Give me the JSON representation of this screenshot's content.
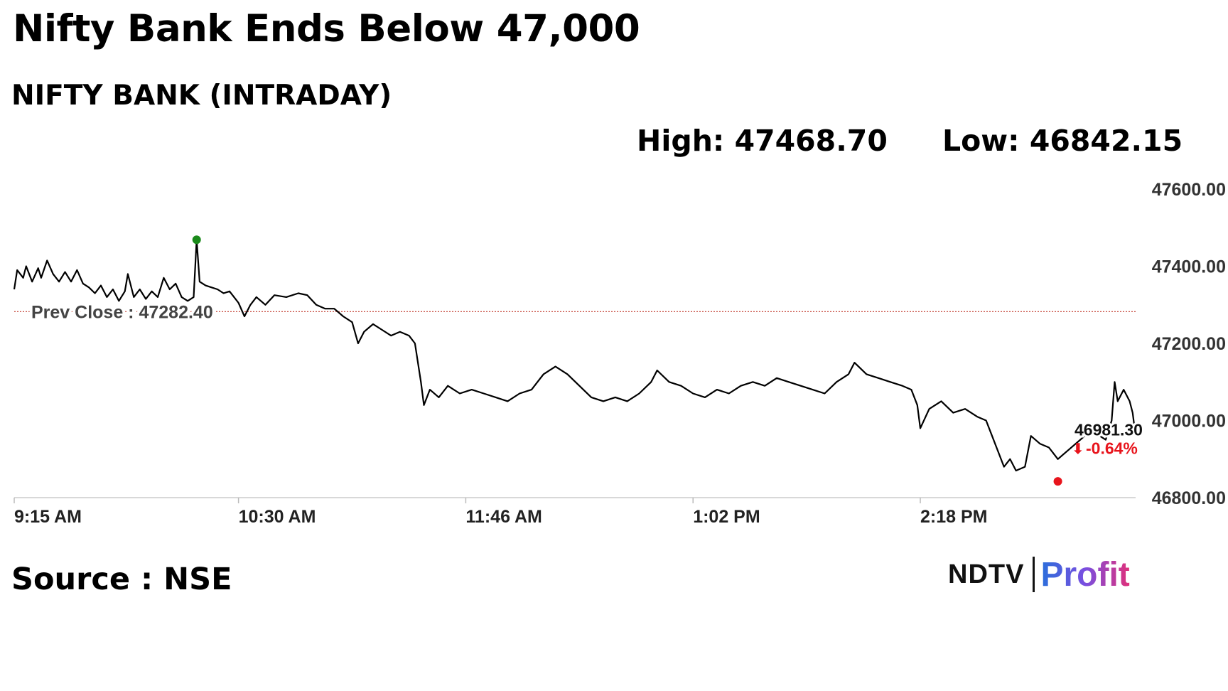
{
  "header": {
    "headline": "Nifty Bank Ends Below 47,000",
    "subtitle": "NIFTY BANK (INTRADAY)",
    "high_text": "High: 47468.70",
    "low_text": "Low: 46842.15"
  },
  "footer": {
    "source": "Source : NSE",
    "logo_ndtv": "NDTV",
    "logo_profit": "Profit"
  },
  "colors": {
    "line": "#000000",
    "prev_close_line": "#c0392b",
    "high_marker": "#1a8a1a",
    "low_marker": "#e8141c",
    "last_marker": "#1a1aa8",
    "change_negative": "#e8141c"
  },
  "chart_data": {
    "type": "line",
    "title": "NIFTY BANK (INTRADAY)",
    "xlabel": "",
    "ylabel": "",
    "ylim": [
      46800,
      47600
    ],
    "yticks": [
      47600,
      47400,
      47200,
      47000,
      46800
    ],
    "ytick_labels": [
      "47600.00",
      "47400.00",
      "47200.00",
      "47000.00",
      "46800.00"
    ],
    "xlim": [
      "09:15",
      "15:30"
    ],
    "xticks": [
      "09:15",
      "10:30",
      "11:46",
      "13:02",
      "14:18"
    ],
    "xtick_labels": [
      "9:15 AM",
      "10:30 AM",
      "11:46 AM",
      "1:02 PM",
      "2:18 PM"
    ],
    "grid": false,
    "prev_close": 47282.4,
    "prev_close_label": "Prev Close : 47282.40",
    "high": {
      "x": "10:16",
      "y": 47468.7
    },
    "low": {
      "x": "15:04",
      "y": 46842.15
    },
    "last": {
      "x": "15:30",
      "y": 46981.3
    },
    "last_label": "46981.30",
    "change_label": "-0.64%",
    "change_arrow": "⬇",
    "series": [
      {
        "values": [
          [
            "09:15",
            47340
          ],
          [
            "09:16",
            47390
          ],
          [
            "09:18",
            47370
          ],
          [
            "09:19",
            47400
          ],
          [
            "09:21",
            47360
          ],
          [
            "09:23",
            47395
          ],
          [
            "09:24",
            47370
          ],
          [
            "09:26",
            47415
          ],
          [
            "09:28",
            47380
          ],
          [
            "09:30",
            47360
          ],
          [
            "09:32",
            47385
          ],
          [
            "09:34",
            47360
          ],
          [
            "09:36",
            47390
          ],
          [
            "09:38",
            47355
          ],
          [
            "09:40",
            47345
          ],
          [
            "09:42",
            47330
          ],
          [
            "09:44",
            47350
          ],
          [
            "09:46",
            47320
          ],
          [
            "09:48",
            47340
          ],
          [
            "09:50",
            47310
          ],
          [
            "09:52",
            47335
          ],
          [
            "09:53",
            47380
          ],
          [
            "09:55",
            47320
          ],
          [
            "09:57",
            47340
          ],
          [
            "09:59",
            47315
          ],
          [
            "10:01",
            47335
          ],
          [
            "10:03",
            47320
          ],
          [
            "10:05",
            47370
          ],
          [
            "10:07",
            47340
          ],
          [
            "10:09",
            47355
          ],
          [
            "10:11",
            47320
          ],
          [
            "10:13",
            47310
          ],
          [
            "10:15",
            47320
          ],
          [
            "10:16",
            47468.7
          ],
          [
            "10:17",
            47360
          ],
          [
            "10:19",
            47350
          ],
          [
            "10:21",
            47345
          ],
          [
            "10:23",
            47340
          ],
          [
            "10:25",
            47330
          ],
          [
            "10:27",
            47335
          ],
          [
            "10:29",
            47315
          ],
          [
            "10:30",
            47305
          ],
          [
            "10:32",
            47270
          ],
          [
            "10:34",
            47300
          ],
          [
            "10:36",
            47320
          ],
          [
            "10:39",
            47300
          ],
          [
            "10:42",
            47325
          ],
          [
            "10:46",
            47320
          ],
          [
            "10:50",
            47330
          ],
          [
            "10:53",
            47325
          ],
          [
            "10:56",
            47300
          ],
          [
            "10:59",
            47290
          ],
          [
            "11:02",
            47290
          ],
          [
            "11:05",
            47270
          ],
          [
            "11:08",
            47255
          ],
          [
            "11:10",
            47200
          ],
          [
            "11:12",
            47230
          ],
          [
            "11:15",
            47250
          ],
          [
            "11:18",
            47235
          ],
          [
            "11:21",
            47220
          ],
          [
            "11:24",
            47230
          ],
          [
            "11:27",
            47220
          ],
          [
            "11:29",
            47200
          ],
          [
            "11:31",
            47100
          ],
          [
            "11:32",
            47040
          ],
          [
            "11:34",
            47080
          ],
          [
            "11:37",
            47060
          ],
          [
            "11:40",
            47090
          ],
          [
            "11:44",
            47070
          ],
          [
            "11:48",
            47080
          ],
          [
            "11:52",
            47070
          ],
          [
            "11:56",
            47060
          ],
          [
            "12:00",
            47050
          ],
          [
            "12:04",
            47070
          ],
          [
            "12:08",
            47080
          ],
          [
            "12:12",
            47120
          ],
          [
            "12:16",
            47140
          ],
          [
            "12:20",
            47120
          ],
          [
            "12:24",
            47090
          ],
          [
            "12:28",
            47060
          ],
          [
            "12:32",
            47050
          ],
          [
            "12:36",
            47060
          ],
          [
            "12:40",
            47050
          ],
          [
            "12:44",
            47070
          ],
          [
            "12:48",
            47100
          ],
          [
            "12:50",
            47130
          ],
          [
            "12:54",
            47100
          ],
          [
            "12:58",
            47090
          ],
          [
            "13:02",
            47070
          ],
          [
            "13:06",
            47060
          ],
          [
            "13:10",
            47080
          ],
          [
            "13:14",
            47070
          ],
          [
            "13:18",
            47090
          ],
          [
            "13:22",
            47100
          ],
          [
            "13:26",
            47090
          ],
          [
            "13:30",
            47110
          ],
          [
            "13:34",
            47100
          ],
          [
            "13:38",
            47090
          ],
          [
            "13:42",
            47080
          ],
          [
            "13:46",
            47070
          ],
          [
            "13:50",
            47100
          ],
          [
            "13:54",
            47120
          ],
          [
            "13:56",
            47150
          ],
          [
            "14:00",
            47120
          ],
          [
            "14:04",
            47110
          ],
          [
            "14:08",
            47100
          ],
          [
            "14:12",
            47090
          ],
          [
            "14:15",
            47080
          ],
          [
            "14:17",
            47040
          ],
          [
            "14:18",
            46980
          ],
          [
            "14:21",
            47030
          ],
          [
            "14:25",
            47050
          ],
          [
            "14:29",
            47020
          ],
          [
            "14:33",
            47030
          ],
          [
            "14:37",
            47010
          ],
          [
            "14:40",
            47000
          ],
          [
            "14:42",
            46960
          ],
          [
            "14:44",
            46920
          ],
          [
            "14:46",
            46880
          ],
          [
            "14:48",
            46900
          ],
          [
            "14:50",
            46870
          ],
          [
            "14:53",
            46880
          ],
          [
            "14:55",
            46960
          ],
          [
            "14:58",
            46940
          ],
          [
            "15:01",
            46930
          ],
          [
            "15:04",
            46900
          ],
          [
            "15:07",
            46920
          ],
          [
            "15:10",
            46940
          ],
          [
            "15:13",
            46960
          ],
          [
            "15:16",
            46980
          ],
          [
            "15:18",
            46960
          ],
          [
            "15:20",
            46950
          ],
          [
            "15:22",
            47000
          ],
          [
            "15:23",
            47100
          ],
          [
            "15:24",
            47050
          ],
          [
            "15:26",
            47080
          ],
          [
            "15:28",
            47050
          ],
          [
            "15:29",
            47020
          ],
          [
            "15:30",
            46960
          ]
        ]
      }
    ]
  }
}
